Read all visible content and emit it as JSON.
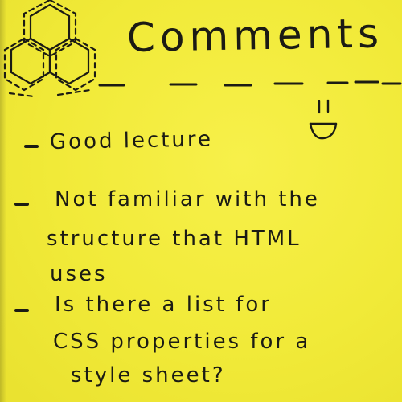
{
  "note": {
    "title": "Comments",
    "emoticon": "smiley-face-icon",
    "comments": [
      {
        "lines": [
          "Good lecture"
        ]
      },
      {
        "lines": [
          "Not familiar with the",
          "structure that HTML",
          "uses"
        ]
      },
      {
        "lines": [
          "Is there a list for",
          "CSS properties for a",
          "style sheet?"
        ]
      }
    ]
  },
  "colors": {
    "paper": "#f2ec3b",
    "ink": "#1b1b14"
  }
}
